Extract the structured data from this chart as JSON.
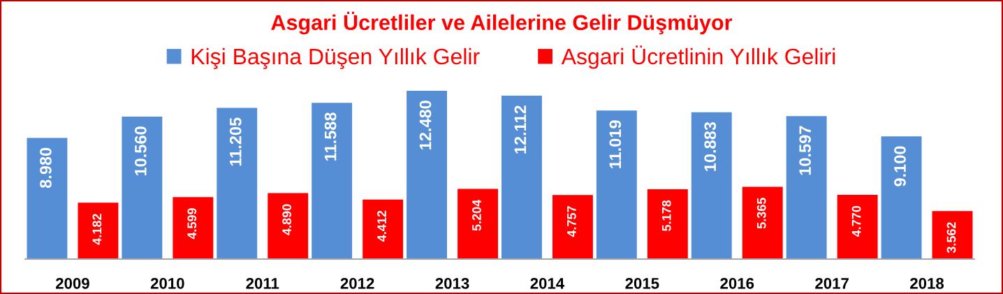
{
  "chart_data": {
    "type": "bar",
    "title": "Asgari Ücretliler ve Ailelerine Gelir Düşmüyor",
    "categories": [
      "2009",
      "2010",
      "2011",
      "2012",
      "2013",
      "2014",
      "2015",
      "2016",
      "2017",
      "2018"
    ],
    "series": [
      {
        "name": "Kişi Başına Düşen Yıllık Gelir",
        "color": "#558ed5",
        "values": [
          8980,
          10560,
          11205,
          11588,
          12480,
          12112,
          11019,
          10883,
          10597,
          9100
        ],
        "value_labels": [
          "8.980",
          "10.560",
          "11.205",
          "11.588",
          "12.480",
          "12.112",
          "11.019",
          "10.883",
          "10.597",
          "9.100"
        ]
      },
      {
        "name": "Asgari Ücretlinin Yıllık Geliri",
        "color": "#ff0000",
        "values": [
          4182,
          4599,
          4890,
          4412,
          5204,
          4757,
          5178,
          5365,
          4770,
          3562
        ],
        "value_labels": [
          "4.182",
          "4.599",
          "4.890",
          "4.412",
          "5.204",
          "4.757",
          "5.178",
          "5.365",
          "4.770",
          "3.562"
        ]
      }
    ],
    "legend": "top"
  }
}
